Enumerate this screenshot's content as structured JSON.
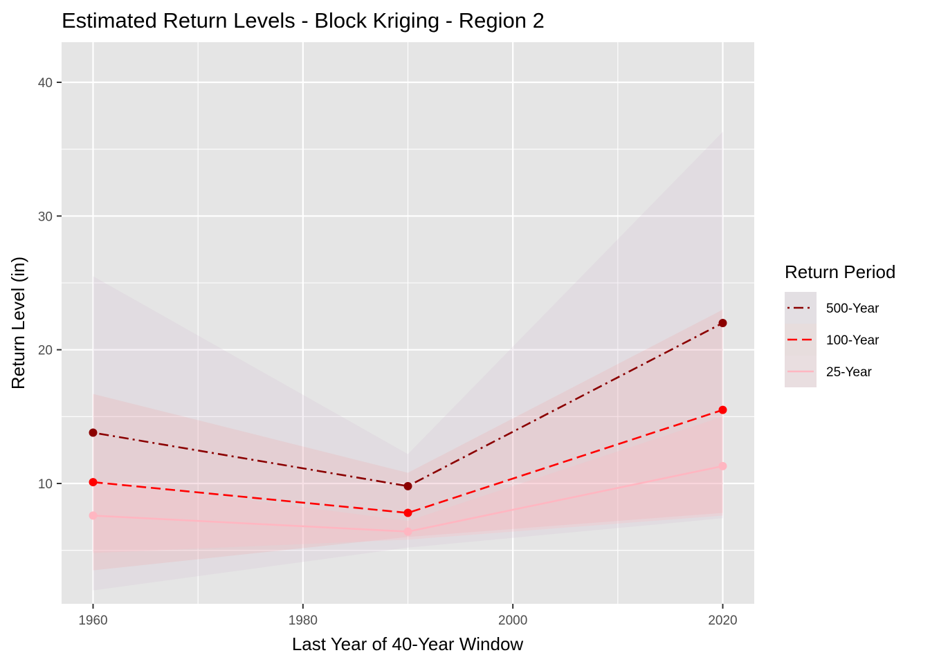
{
  "chart_data": {
    "type": "line",
    "title": "Estimated Return Levels - Block Kriging - Region 2",
    "xlabel": "Last Year of 40-Year Window",
    "ylabel": "Return Level (in)",
    "xlim": [
      1957,
      2023
    ],
    "ylim": [
      1,
      43
    ],
    "x_ticks": [
      1960,
      1980,
      2000,
      2020
    ],
    "x_tick_labels": [
      "1960",
      "1980",
      "2000",
      "2020"
    ],
    "x_minor_ticks": [
      1970,
      1990,
      2010
    ],
    "y_ticks": [
      10,
      20,
      30,
      40
    ],
    "y_tick_labels": [
      "10",
      "20",
      "30",
      "40"
    ],
    "y_minor_ticks": [
      5,
      15,
      25,
      35
    ],
    "grid": true,
    "legend_title": "Return Period",
    "legend_position": "right",
    "x": [
      1960,
      1990,
      2020
    ],
    "series": [
      {
        "name": "500-Year",
        "values": [
          13.8,
          9.8,
          22.0
        ],
        "lower": [
          2.0,
          5.2,
          7.4
        ],
        "upper": [
          25.5,
          12.2,
          36.3
        ],
        "color": "#8b0000",
        "band_color": "#d8bfd8",
        "band_opacity": 0.22,
        "linestyle": "dotdash"
      },
      {
        "name": "100-Year",
        "values": [
          10.1,
          7.8,
          15.5
        ],
        "lower": [
          3.5,
          6.0,
          7.8
        ],
        "upper": [
          16.7,
          10.8,
          23.0
        ],
        "color": "#ff0000",
        "band_color": "#ff7f7f",
        "band_opacity": 0.13,
        "linestyle": "dashed"
      },
      {
        "name": "25-Year",
        "values": [
          7.6,
          6.4,
          11.3
        ],
        "lower": [
          4.8,
          5.8,
          7.6
        ],
        "upper": [
          10.3,
          7.2,
          15.0
        ],
        "color": "#ffb6c1",
        "band_color": "#ffb6c1",
        "band_opacity": 0.25,
        "linestyle": "solid"
      }
    ]
  }
}
